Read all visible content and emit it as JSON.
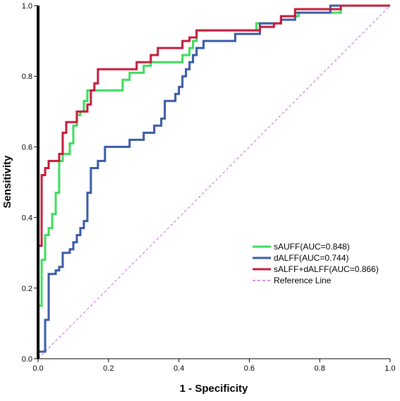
{
  "chart_data": {
    "type": "line",
    "title": "",
    "xlabel": "1 - Specificity",
    "ylabel": "Sensitivity",
    "xlim": [
      0.0,
      1.0
    ],
    "ylim": [
      0.0,
      1.0
    ],
    "x_ticks": [
      "0.0",
      "0.2",
      "0.4",
      "0.6",
      "0.8",
      "1.0"
    ],
    "y_ticks": [
      "0.0",
      "0.2",
      "0.4",
      "0.6",
      "0.8",
      "1.0"
    ],
    "grid": false,
    "legend_position": "bottom-right",
    "series": [
      {
        "name": "sAUFF(AUC=0.848)",
        "color": "#3cdc5a",
        "points": [
          [
            0,
            0
          ],
          [
            0,
            0.15
          ],
          [
            0.01,
            0.15
          ],
          [
            0.01,
            0.28
          ],
          [
            0.02,
            0.28
          ],
          [
            0.02,
            0.35
          ],
          [
            0.03,
            0.35
          ],
          [
            0.03,
            0.37
          ],
          [
            0.04,
            0.37
          ],
          [
            0.04,
            0.41
          ],
          [
            0.05,
            0.41
          ],
          [
            0.05,
            0.47
          ],
          [
            0.06,
            0.47
          ],
          [
            0.06,
            0.56
          ],
          [
            0.07,
            0.56
          ],
          [
            0.07,
            0.58
          ],
          [
            0.09,
            0.58
          ],
          [
            0.09,
            0.61
          ],
          [
            0.1,
            0.61
          ],
          [
            0.1,
            0.66
          ],
          [
            0.11,
            0.66
          ],
          [
            0.11,
            0.69
          ],
          [
            0.12,
            0.69
          ],
          [
            0.12,
            0.7
          ],
          [
            0.13,
            0.7
          ],
          [
            0.13,
            0.73
          ],
          [
            0.14,
            0.73
          ],
          [
            0.14,
            0.76
          ],
          [
            0.24,
            0.76
          ],
          [
            0.24,
            0.79
          ],
          [
            0.26,
            0.79
          ],
          [
            0.26,
            0.81
          ],
          [
            0.3,
            0.81
          ],
          [
            0.3,
            0.83
          ],
          [
            0.32,
            0.83
          ],
          [
            0.32,
            0.84
          ],
          [
            0.41,
            0.84
          ],
          [
            0.41,
            0.86
          ],
          [
            0.43,
            0.86
          ],
          [
            0.43,
            0.88
          ],
          [
            0.44,
            0.88
          ],
          [
            0.44,
            0.9
          ],
          [
            0.45,
            0.9
          ],
          [
            0.45,
            0.93
          ],
          [
            0.62,
            0.93
          ],
          [
            0.62,
            0.95
          ],
          [
            0.69,
            0.95
          ],
          [
            0.69,
            0.97
          ],
          [
            0.74,
            0.97
          ],
          [
            0.74,
            0.98
          ],
          [
            0.86,
            0.98
          ],
          [
            0.86,
            1.0
          ],
          [
            1.0,
            1.0
          ]
        ]
      },
      {
        "name": "dALFF(AUC=0.744)",
        "color": "#3a5aa6",
        "points": [
          [
            0,
            0
          ],
          [
            0,
            0.02
          ],
          [
            0.02,
            0.02
          ],
          [
            0.02,
            0.11
          ],
          [
            0.03,
            0.11
          ],
          [
            0.03,
            0.24
          ],
          [
            0.05,
            0.24
          ],
          [
            0.05,
            0.25
          ],
          [
            0.06,
            0.25
          ],
          [
            0.06,
            0.26
          ],
          [
            0.07,
            0.26
          ],
          [
            0.07,
            0.3
          ],
          [
            0.09,
            0.3
          ],
          [
            0.09,
            0.31
          ],
          [
            0.1,
            0.31
          ],
          [
            0.1,
            0.33
          ],
          [
            0.11,
            0.33
          ],
          [
            0.11,
            0.35
          ],
          [
            0.12,
            0.35
          ],
          [
            0.12,
            0.37
          ],
          [
            0.13,
            0.37
          ],
          [
            0.13,
            0.39
          ],
          [
            0.14,
            0.39
          ],
          [
            0.14,
            0.47
          ],
          [
            0.15,
            0.47
          ],
          [
            0.15,
            0.54
          ],
          [
            0.17,
            0.54
          ],
          [
            0.17,
            0.56
          ],
          [
            0.19,
            0.56
          ],
          [
            0.19,
            0.6
          ],
          [
            0.26,
            0.6
          ],
          [
            0.26,
            0.62
          ],
          [
            0.3,
            0.62
          ],
          [
            0.3,
            0.64
          ],
          [
            0.33,
            0.64
          ],
          [
            0.33,
            0.66
          ],
          [
            0.35,
            0.66
          ],
          [
            0.35,
            0.68
          ],
          [
            0.36,
            0.68
          ],
          [
            0.36,
            0.73
          ],
          [
            0.39,
            0.73
          ],
          [
            0.39,
            0.75
          ],
          [
            0.4,
            0.75
          ],
          [
            0.4,
            0.77
          ],
          [
            0.41,
            0.77
          ],
          [
            0.41,
            0.8
          ],
          [
            0.42,
            0.8
          ],
          [
            0.42,
            0.82
          ],
          [
            0.43,
            0.82
          ],
          [
            0.43,
            0.84
          ],
          [
            0.44,
            0.84
          ],
          [
            0.44,
            0.86
          ],
          [
            0.45,
            0.86
          ],
          [
            0.45,
            0.88
          ],
          [
            0.47,
            0.88
          ],
          [
            0.47,
            0.9
          ],
          [
            0.56,
            0.9
          ],
          [
            0.56,
            0.92
          ],
          [
            0.63,
            0.92
          ],
          [
            0.63,
            0.95
          ],
          [
            0.69,
            0.95
          ],
          [
            0.69,
            0.96
          ],
          [
            0.73,
            0.96
          ],
          [
            0.73,
            0.98
          ],
          [
            0.83,
            0.98
          ],
          [
            0.83,
            1.0
          ],
          [
            1.0,
            1.0
          ]
        ]
      },
      {
        "name": "sALFF+dALFF(AUC=0.866)",
        "color": "#c41c3a",
        "points": [
          [
            0,
            0
          ],
          [
            0,
            0.32
          ],
          [
            0.01,
            0.32
          ],
          [
            0.01,
            0.52
          ],
          [
            0.02,
            0.52
          ],
          [
            0.02,
            0.54
          ],
          [
            0.03,
            0.54
          ],
          [
            0.03,
            0.56
          ],
          [
            0.06,
            0.56
          ],
          [
            0.06,
            0.58
          ],
          [
            0.07,
            0.58
          ],
          [
            0.07,
            0.64
          ],
          [
            0.08,
            0.64
          ],
          [
            0.08,
            0.67
          ],
          [
            0.11,
            0.67
          ],
          [
            0.11,
            0.7
          ],
          [
            0.14,
            0.7
          ],
          [
            0.14,
            0.72
          ],
          [
            0.15,
            0.72
          ],
          [
            0.15,
            0.76
          ],
          [
            0.16,
            0.76
          ],
          [
            0.16,
            0.78
          ],
          [
            0.17,
            0.78
          ],
          [
            0.17,
            0.82
          ],
          [
            0.28,
            0.82
          ],
          [
            0.28,
            0.84
          ],
          [
            0.32,
            0.84
          ],
          [
            0.32,
            0.86
          ],
          [
            0.34,
            0.86
          ],
          [
            0.34,
            0.88
          ],
          [
            0.41,
            0.88
          ],
          [
            0.41,
            0.9
          ],
          [
            0.43,
            0.9
          ],
          [
            0.43,
            0.91
          ],
          [
            0.45,
            0.91
          ],
          [
            0.45,
            0.93
          ],
          [
            0.63,
            0.93
          ],
          [
            0.63,
            0.94
          ],
          [
            0.67,
            0.94
          ],
          [
            0.67,
            0.95
          ],
          [
            0.69,
            0.95
          ],
          [
            0.69,
            0.97
          ],
          [
            0.73,
            0.97
          ],
          [
            0.73,
            0.99
          ],
          [
            0.86,
            0.99
          ],
          [
            0.86,
            1.0
          ],
          [
            1.0,
            1.0
          ]
        ]
      },
      {
        "name": "Reference Line",
        "color": "#cc66ee",
        "dashed": true,
        "points": [
          [
            0,
            0
          ],
          [
            1,
            1
          ]
        ]
      }
    ]
  }
}
